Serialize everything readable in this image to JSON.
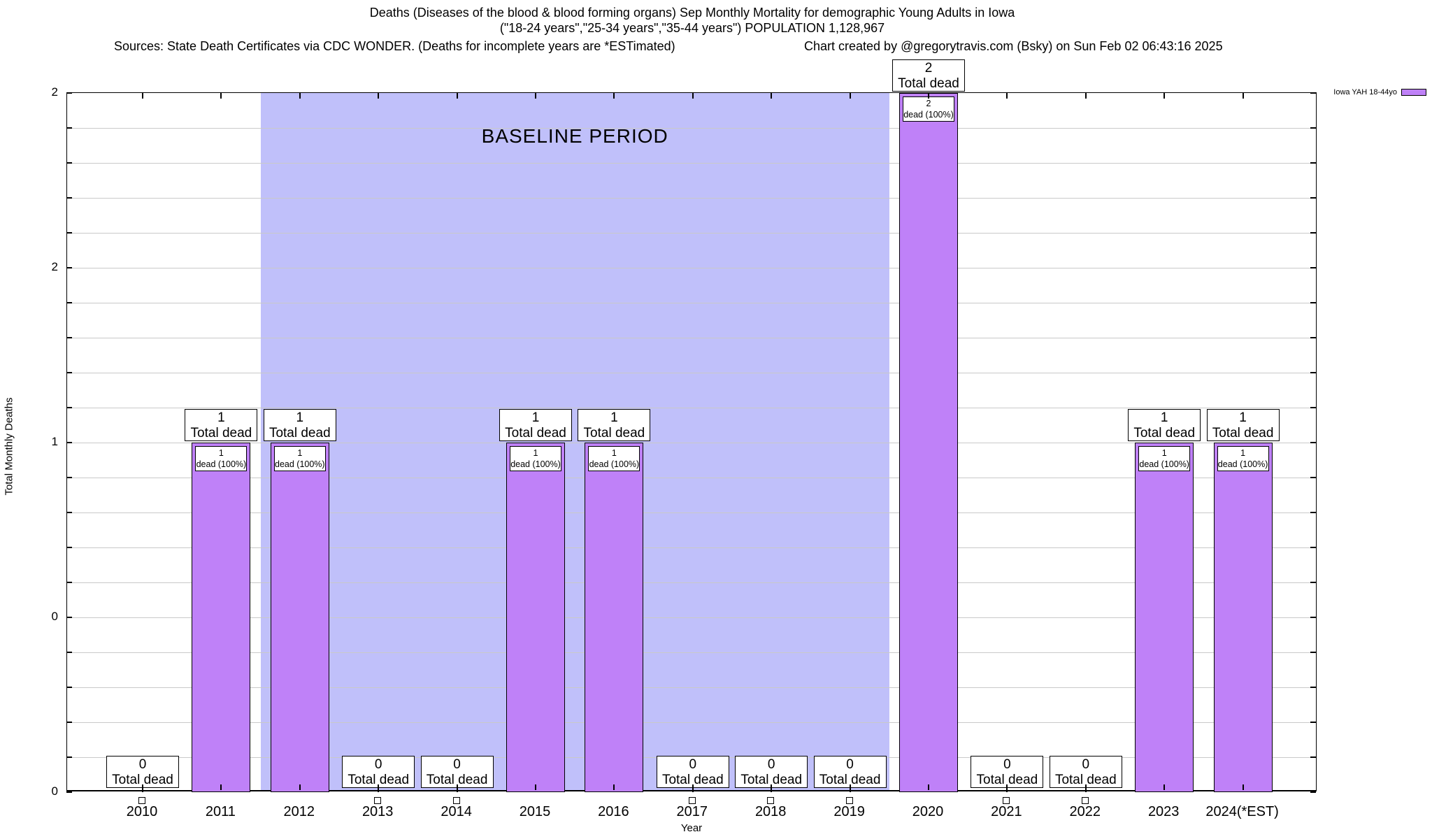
{
  "header": {
    "title": "Deaths (Diseases of the blood & blood forming organs) Sep Monthly Mortality for demographic Young Adults in Iowa",
    "subtitle": "(\"18-24 years\",\"25-34 years\",\"35-44 years\") POPULATION 1,128,967",
    "sources": "Sources: State Death Certificates via CDC WONDER. (Deaths for incomplete years are *ESTimated)",
    "credit": "Chart created by @gregorytravis.com (Bsky) on Sun Feb 02 06:43:16 2025"
  },
  "legend": {
    "series_label": "Iowa YAH 18-44yo"
  },
  "axes": {
    "y_title": "Total Monthly Deaths",
    "x_title": "Year"
  },
  "chart_data": {
    "type": "bar",
    "title": "Deaths (Diseases of the blood & blood forming organs) Sep Monthly Mortality for demographic Young Adults in Iowa",
    "categories": [
      "2010",
      "2011",
      "2012",
      "2013",
      "2014",
      "2015",
      "2016",
      "2017",
      "2018",
      "2019",
      "2020",
      "2021",
      "2022",
      "2023",
      "2024(*EST)"
    ],
    "series": [
      {
        "name": "Iowa YAH 18-44yo",
        "values": [
          0,
          1,
          1,
          0,
          0,
          1,
          1,
          0,
          0,
          0,
          2,
          0,
          0,
          1,
          1
        ]
      }
    ],
    "xlabel": "Year",
    "ylabel": "Total Monthly Deaths",
    "ylim": [
      0,
      2
    ],
    "y_major_ticks": [
      {
        "value": 0,
        "label": "0"
      },
      {
        "value": 0.5,
        "label": "0"
      },
      {
        "value": 1,
        "label": "1"
      },
      {
        "value": 1.5,
        "label": "2"
      },
      {
        "value": 2,
        "label": "2"
      }
    ],
    "y_minor_step": 0.1,
    "grid": "horizontal-minor",
    "legend_position": "top-right-outside",
    "bar_total_label": "Total dead",
    "bar_detail_label": "dead (100%)",
    "zero_value_marker": "open-square-below-axis",
    "baseline_region": {
      "from_year": 2011.5,
      "to_year": 2019.5,
      "label": "BASELINE PERIOD"
    }
  },
  "colors": {
    "bar_fill": "#bf81f8",
    "bar_border": "#000000",
    "baseline_fill": "#c0c0fa",
    "gridline": "#c9c9c9",
    "label_box_bg": "#ffffff",
    "label_box_border": "#000000",
    "text": "#000000"
  }
}
